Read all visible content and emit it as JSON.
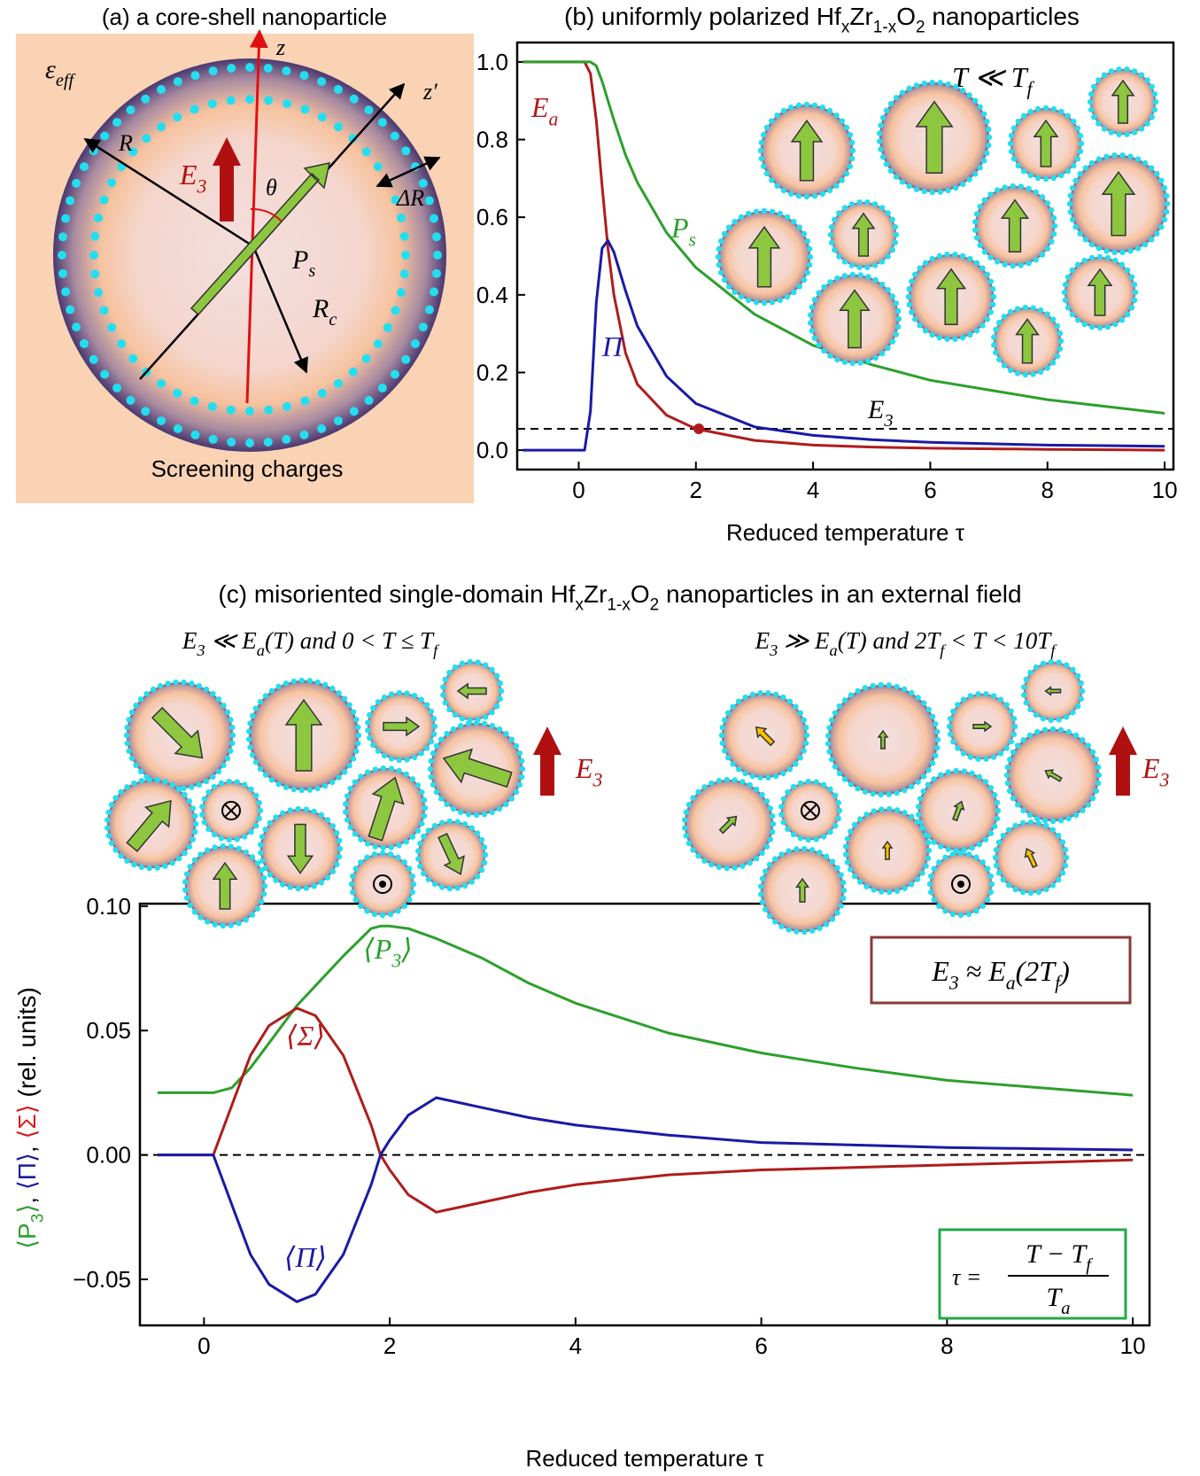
{
  "panel_a": {
    "title": "(a) a core-shell nanoparticle",
    "eps": [
      "ε",
      "eff"
    ],
    "z": "z",
    "z_prime": "z′",
    "R": "R",
    "E3": [
      "E",
      "3"
    ],
    "theta": "θ",
    "delta_R": "ΔR",
    "Ps": [
      "P",
      "s"
    ],
    "Rc": [
      "R",
      "c"
    ],
    "caption": "Screening charges"
  },
  "chart_data": [
    {
      "type": "line",
      "title": [
        "(b) uniformly polarized Hf",
        "x",
        "Zr",
        "1-x",
        "O",
        "2",
        " nanoparticles"
      ],
      "xlabel": "Reduced temperature τ",
      "x": [
        -0.95,
        0.1,
        0.2,
        0.3,
        0.4,
        0.5,
        0.6,
        0.8,
        1,
        1.5,
        2,
        3,
        4,
        5,
        6,
        8,
        10
      ],
      "series": [
        {
          "name": [
            "E",
            "a"
          ],
          "color": "#b01c1c",
          "values": [
            1,
            1,
            0.97,
            0.85,
            0.68,
            0.52,
            0.4,
            0.25,
            0.17,
            0.09,
            0.055,
            0.025,
            0.013,
            0.008,
            0.005,
            0.002,
            0
          ]
        },
        {
          "name": [
            "P",
            "s"
          ],
          "color": "#2ca02c",
          "values": [
            1,
            1,
            1,
            0.99,
            0.95,
            0.9,
            0.85,
            0.76,
            0.69,
            0.56,
            0.47,
            0.35,
            0.27,
            0.22,
            0.18,
            0.13,
            0.095
          ]
        },
        {
          "name": [
            "Π"
          ],
          "color": "#1a1aa6",
          "values": [
            0,
            0,
            0.1,
            0.38,
            0.52,
            0.54,
            0.51,
            0.41,
            0.32,
            0.19,
            0.12,
            0.06,
            0.038,
            0.027,
            0.02,
            0.013,
            0.01
          ]
        }
      ],
      "xlim": [
        -1.05,
        10.15
      ],
      "ylim": [
        -0.05,
        1.05
      ],
      "xticks": [
        0,
        2,
        4,
        6,
        8,
        10
      ],
      "yticks": [
        {
          "value": 0,
          "label": "0.0"
        },
        0.2,
        0.4,
        0.6,
        0.8,
        {
          "value": 1,
          "label": "1.0"
        }
      ],
      "ref_line": {
        "value": 0.055,
        "label": [
          "E",
          "3"
        ]
      },
      "marker": {
        "x": 2.05,
        "y": 0.055,
        "color": "#b01c1c"
      },
      "annotations": [
        {
          "parts": [
            "T ≪ T",
            "f"
          ]
        }
      ]
    },
    {
      "type": "line",
      "title": [
        "(c) misoriented single-domain Hf",
        "x",
        "Zr",
        "1-x",
        "O",
        "2",
        " nanoparticles in an external field"
      ],
      "xlabel": "Reduced temperature τ",
      "ylabel": [
        {
          "parts": [
            "⟨P",
            "3",
            "⟩"
          ],
          "color": "#2ca02c"
        },
        {
          "parts": [
            ", "
          ],
          "color": "#000000"
        },
        {
          "parts": [
            "⟨Π⟩"
          ],
          "color": "#1a1aa6"
        },
        {
          "parts": [
            ", "
          ],
          "color": "#000000"
        },
        {
          "parts": [
            "⟨Σ⟩"
          ],
          "color": "#d42020"
        },
        {
          "parts": [
            " (rel. units)"
          ],
          "color": "#000000"
        }
      ],
      "x": [
        -0.5,
        0.1,
        0.3,
        0.5,
        0.7,
        1,
        1.2,
        1.5,
        1.8,
        1.9,
        2,
        2.2,
        2.5,
        3,
        3.5,
        4,
        5,
        6,
        7,
        8,
        9,
        10
      ],
      "series": [
        {
          "name": [
            "⟨P",
            "3",
            "⟩"
          ],
          "color": "#2ca02c",
          "values": [
            0.025,
            0.025,
            0.027,
            0.035,
            0.045,
            0.06,
            0.068,
            0.08,
            0.091,
            0.092,
            0.092,
            0.091,
            0.087,
            0.079,
            0.069,
            0.061,
            0.049,
            0.041,
            0.035,
            0.03,
            0.027,
            0.024
          ]
        },
        {
          "name": [
            "⟨Σ⟩"
          ],
          "color": "#b01c1c",
          "values": [
            0,
            0,
            0.02,
            0.04,
            0.052,
            0.059,
            0.056,
            0.04,
            0.012,
            0,
            -0.006,
            -0.016,
            -0.023,
            -0.019,
            -0.015,
            -0.012,
            -0.008,
            -0.006,
            -0.005,
            -0.004,
            -0.003,
            -0.002
          ]
        },
        {
          "name": [
            "⟨Π⟩"
          ],
          "color": "#1a1aa6",
          "values": [
            0,
            0,
            -0.02,
            -0.04,
            -0.052,
            -0.059,
            -0.056,
            -0.04,
            -0.012,
            0,
            0.006,
            0.016,
            0.023,
            0.019,
            0.015,
            0.012,
            0.008,
            0.005,
            0.004,
            0.003,
            0.0025,
            0.002
          ]
        }
      ],
      "xlim": [
        -0.69,
        10.18
      ],
      "ylim": [
        -0.0685,
        0.101
      ],
      "xticks": [
        0,
        2,
        4,
        6,
        8,
        10
      ],
      "yticks": [
        {
          "value": -0.05,
          "label": "−0.05"
        },
        {
          "value": 0,
          "label": "0.00"
        },
        0.05,
        {
          "value": 0.1,
          "label": "0.10"
        }
      ],
      "ref_line": {
        "value": 0
      },
      "boxes": [
        {
          "parts": [
            "E",
            "3",
            " ≈ E",
            "a",
            "(2T",
            "f",
            ")"
          ],
          "color": "#8b3a3a"
        },
        {
          "lhs": "τ =",
          "numerator": [
            "T − T",
            "f"
          ],
          "denominator": [
            "T",
            "a"
          ],
          "color": "#22aa44"
        }
      ]
    }
  ],
  "panel_c": {
    "left_condition": [
      "E",
      "3",
      " ≪ E",
      "a",
      "(T) and 0 < T ≤ T",
      "f"
    ],
    "right_condition": [
      "E",
      "3",
      " ≫ E",
      "a",
      "(T) and 2T",
      "f",
      " < T < 10T",
      "f"
    ],
    "field_left": [
      "E",
      "3"
    ],
    "field_right": [
      "E",
      "3"
    ]
  }
}
